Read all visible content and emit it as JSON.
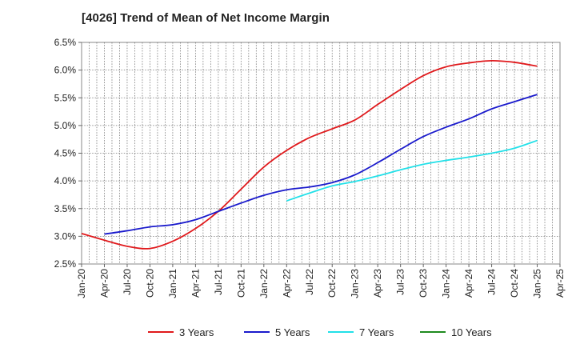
{
  "chart_data": {
    "type": "line",
    "title": "[4026]  Trend of Mean of Net Income Margin",
    "xlabel": "",
    "ylabel": "",
    "x_ticks": [
      "Jan-20",
      "Apr-20",
      "Jul-20",
      "Oct-20",
      "Jan-21",
      "Apr-21",
      "Jul-21",
      "Oct-21",
      "Jan-22",
      "Apr-22",
      "Jul-22",
      "Oct-22",
      "Jan-23",
      "Apr-23",
      "Jul-23",
      "Oct-23",
      "Jan-24",
      "Apr-24",
      "Jul-24",
      "Oct-24",
      "Jan-25",
      "Apr-25"
    ],
    "y_ticks": [
      "2.5%",
      "3.0%",
      "3.5%",
      "4.0%",
      "4.5%",
      "5.0%",
      "5.5%",
      "6.0%",
      "6.5%"
    ],
    "ylim": [
      2.5,
      6.5
    ],
    "grid": true,
    "legend_position": "bottom",
    "series": [
      {
        "name": "3 Years",
        "color": "#e0191c",
        "x": [
          "Jan-20",
          "Apr-20",
          "Jul-20",
          "Oct-20",
          "Jan-21",
          "Apr-21",
          "Jul-21",
          "Oct-21",
          "Jan-22",
          "Apr-22",
          "Jul-22",
          "Oct-22",
          "Jan-23",
          "Apr-23",
          "Jul-23",
          "Oct-23",
          "Jan-24",
          "Apr-24",
          "Jul-24",
          "Oct-24",
          "Jan-25"
        ],
        "values": [
          3.05,
          2.93,
          2.82,
          2.78,
          2.91,
          3.14,
          3.45,
          3.85,
          4.25,
          4.55,
          4.78,
          4.94,
          5.1,
          5.38,
          5.65,
          5.9,
          6.06,
          6.13,
          6.17,
          6.14,
          6.07
        ]
      },
      {
        "name": "5 Years",
        "color": "#1a1acc",
        "x": [
          "Apr-20",
          "Jul-20",
          "Oct-20",
          "Jan-21",
          "Apr-21",
          "Jul-21",
          "Oct-21",
          "Jan-22",
          "Apr-22",
          "Jul-22",
          "Oct-22",
          "Jan-23",
          "Apr-23",
          "Jul-23",
          "Oct-23",
          "Jan-24",
          "Apr-24",
          "Jul-24",
          "Oct-24",
          "Jan-25"
        ],
        "values": [
          3.04,
          3.1,
          3.17,
          3.21,
          3.3,
          3.45,
          3.6,
          3.74,
          3.84,
          3.89,
          3.97,
          4.11,
          4.33,
          4.57,
          4.8,
          4.97,
          5.12,
          5.3,
          5.43,
          5.56
        ]
      },
      {
        "name": "7 Years",
        "color": "#22e0e8",
        "x": [
          "Apr-22",
          "Jul-22",
          "Oct-22",
          "Jan-23",
          "Apr-23",
          "Jul-23",
          "Oct-23",
          "Jan-24",
          "Apr-24",
          "Jul-24",
          "Oct-24",
          "Jan-25"
        ],
        "values": [
          3.64,
          3.78,
          3.91,
          3.99,
          4.09,
          4.2,
          4.3,
          4.37,
          4.43,
          4.5,
          4.59,
          4.73
        ]
      },
      {
        "name": "10 Years",
        "color": "#1f8a1f",
        "x": [],
        "values": []
      }
    ]
  }
}
